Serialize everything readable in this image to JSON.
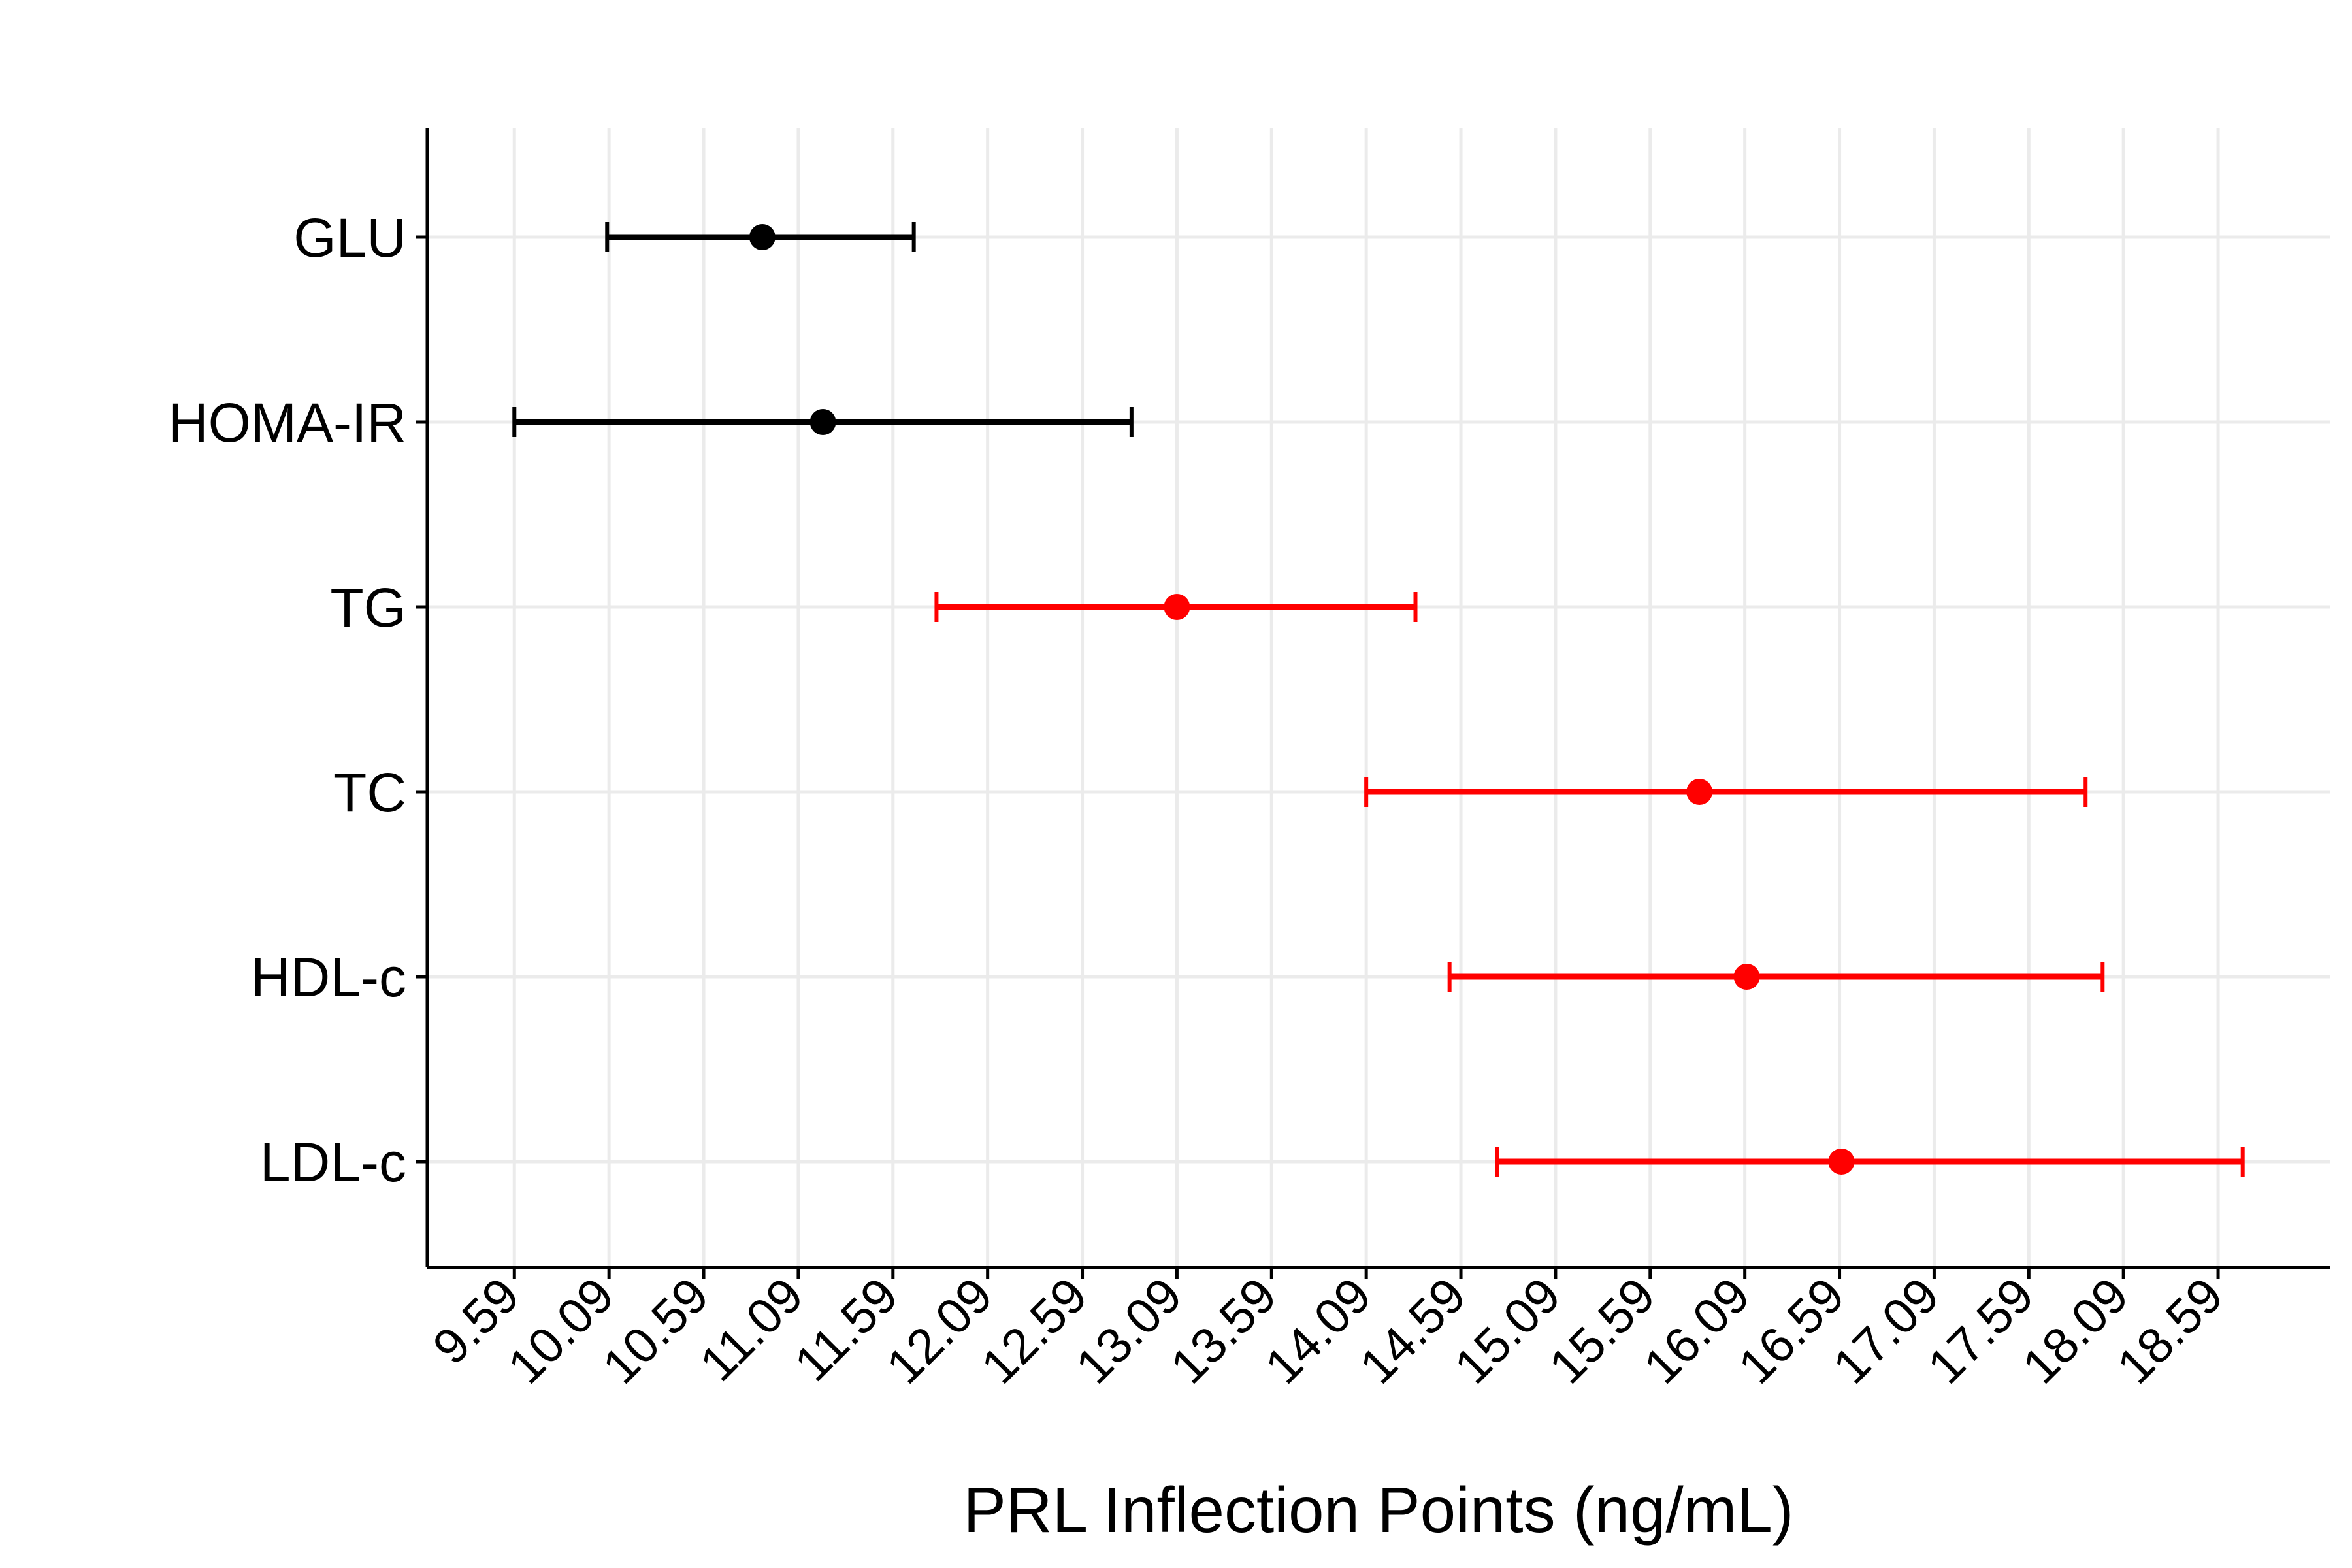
{
  "chart_data": {
    "type": "forest",
    "xlabel": "PRL Inflection Points (ng/mL)",
    "ylabel": "",
    "title": "",
    "x_ticks": [
      "9.59",
      "10.09",
      "10.59",
      "11.09",
      "11.59",
      "12.09",
      "12.59",
      "13.09",
      "13.59",
      "14.09",
      "14.59",
      "15.09",
      "15.59",
      "16.09",
      "16.59",
      "17.09",
      "17.59",
      "18.09",
      "18.59"
    ],
    "xlim": [
      9.13,
      19.18
    ],
    "grid": true,
    "colors": {
      "black": "#000000",
      "red": "#ff0000",
      "grid": "#ebebeb"
    },
    "series": [
      {
        "category": "GLU",
        "estimate": 10.9,
        "lower": 10.08,
        "upper": 11.7,
        "color": "#000000"
      },
      {
        "category": "HOMA-IR",
        "estimate": 11.22,
        "lower": 9.59,
        "upper": 12.85,
        "color": "#000000"
      },
      {
        "category": "TG",
        "estimate": 13.09,
        "lower": 11.82,
        "upper": 14.35,
        "color": "#ff0000"
      },
      {
        "category": "TC",
        "estimate": 15.85,
        "lower": 14.09,
        "upper": 17.89,
        "color": "#ff0000"
      },
      {
        "category": "HDL-c",
        "estimate": 16.1,
        "lower": 14.53,
        "upper": 17.98,
        "color": "#ff0000"
      },
      {
        "category": "LDL-c",
        "estimate": 16.6,
        "lower": 14.78,
        "upper": 18.72,
        "color": "#ff0000"
      }
    ]
  }
}
